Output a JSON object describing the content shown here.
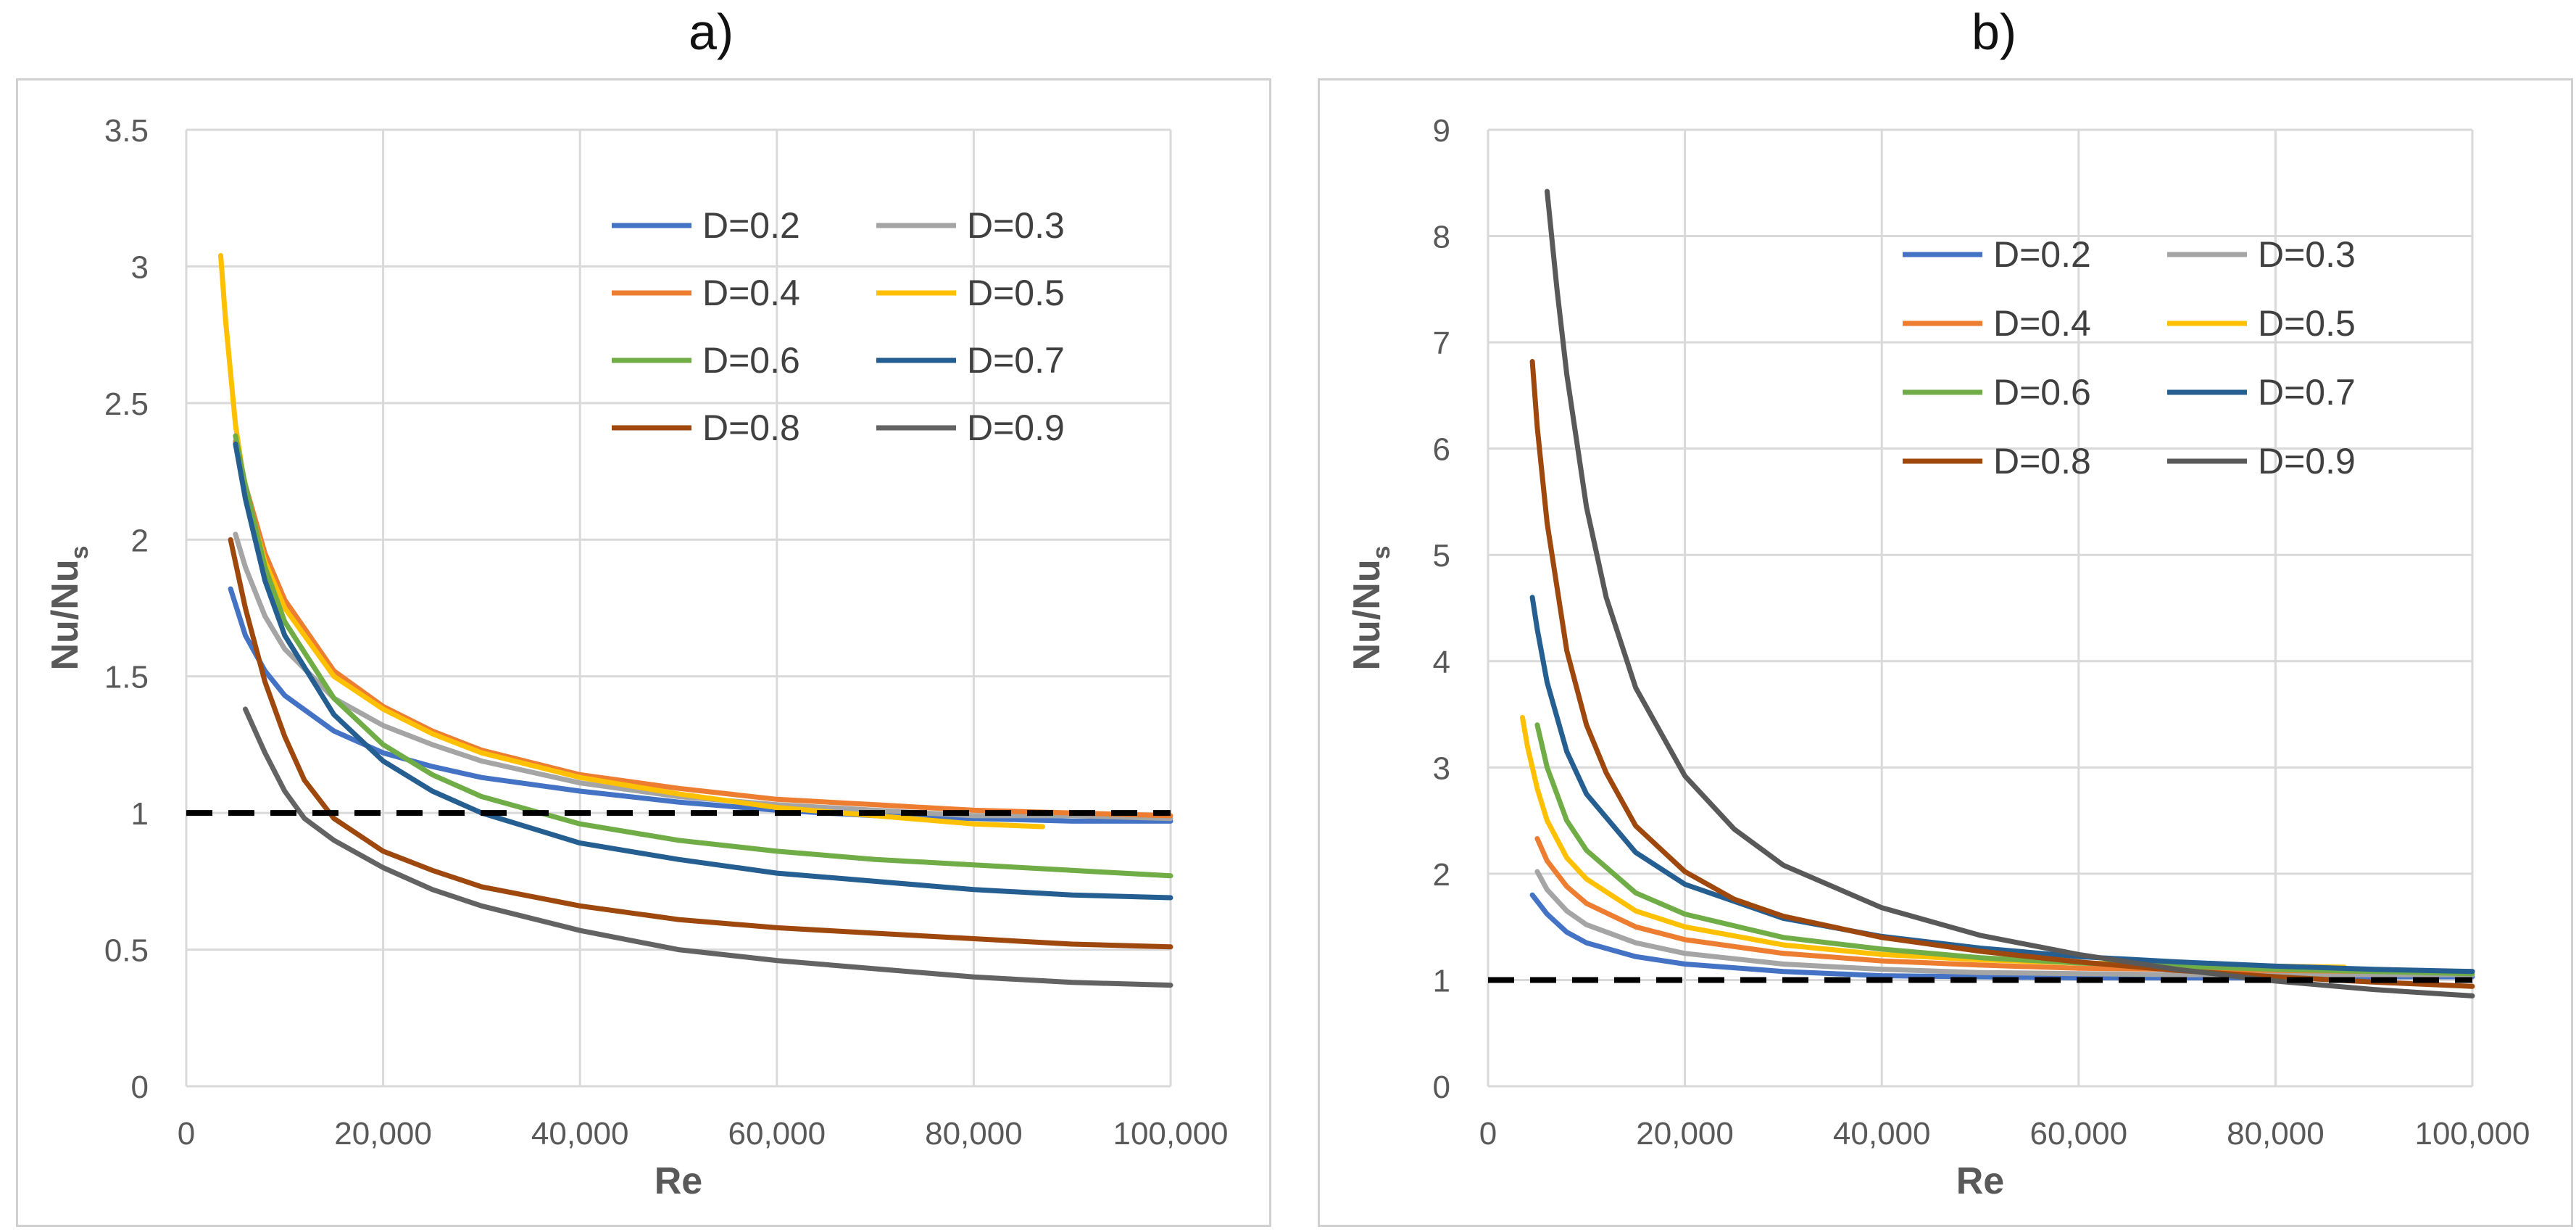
{
  "chart_data": [
    {
      "type": "line",
      "title": "a)",
      "xlabel": "Re",
      "ylabel_main": "Nu/Nu",
      "ylabel_sub": "s",
      "xlim": [
        0,
        100000
      ],
      "ylim": [
        0,
        3.5
      ],
      "xticks": [
        0,
        20000,
        40000,
        60000,
        80000,
        100000
      ],
      "xtick_labels": [
        "0",
        "20,000",
        "40,000",
        "60,000",
        "80,000",
        "100,000"
      ],
      "yticks": [
        0,
        0.5,
        1,
        1.5,
        2,
        2.5,
        3,
        3.5
      ],
      "ytick_labels": [
        "0",
        "0.5",
        "1",
        "1.5",
        "2",
        "2.5",
        "3",
        "3.5"
      ],
      "grid": true,
      "legend_position": "top-right",
      "reference_line": {
        "y": 1,
        "style": "dashed",
        "color": "#000000"
      },
      "series": [
        {
          "name": "D=0.2",
          "color": "#4472C4",
          "x": [
            4500,
            6000,
            8000,
            10000,
            15000,
            20000,
            25000,
            30000,
            40000,
            50000,
            60000,
            70000,
            80000,
            90000,
            100000
          ],
          "y": [
            1.82,
            1.65,
            1.52,
            1.43,
            1.3,
            1.22,
            1.17,
            1.13,
            1.08,
            1.04,
            1.01,
            0.99,
            0.98,
            0.97,
            0.97
          ]
        },
        {
          "name": "D=0.3",
          "color": "#A5A5A5",
          "x": [
            5000,
            6000,
            8000,
            10000,
            15000,
            20000,
            25000,
            30000,
            40000,
            50000,
            60000,
            70000,
            80000,
            90000,
            100000
          ],
          "y": [
            2.02,
            1.9,
            1.72,
            1.6,
            1.42,
            1.32,
            1.25,
            1.19,
            1.11,
            1.06,
            1.03,
            1.01,
            0.99,
            0.99,
            0.98
          ]
        },
        {
          "name": "D=0.4",
          "color": "#ED7D31",
          "x": [
            5000,
            6000,
            8000,
            10000,
            15000,
            20000,
            25000,
            30000,
            40000,
            50000,
            60000,
            70000,
            80000,
            90000,
            100000
          ],
          "y": [
            2.36,
            2.2,
            1.95,
            1.78,
            1.52,
            1.39,
            1.3,
            1.23,
            1.14,
            1.09,
            1.05,
            1.03,
            1.01,
            1.0,
            0.99
          ]
        },
        {
          "name": "D=0.5",
          "color": "#FFC000",
          "x": [
            3500,
            4000,
            5000,
            6000,
            8000,
            10000,
            15000,
            20000,
            25000,
            30000,
            40000,
            50000,
            60000,
            70000,
            80000,
            87000
          ],
          "y": [
            3.04,
            2.8,
            2.42,
            2.18,
            1.92,
            1.75,
            1.5,
            1.38,
            1.29,
            1.22,
            1.13,
            1.07,
            1.02,
            0.99,
            0.96,
            0.95
          ]
        },
        {
          "name": "D=0.6",
          "color": "#70AD47",
          "x": [
            5000,
            6000,
            8000,
            10000,
            15000,
            20000,
            25000,
            30000,
            40000,
            50000,
            60000,
            70000,
            80000,
            90000,
            100000
          ],
          "y": [
            2.38,
            2.2,
            1.9,
            1.7,
            1.42,
            1.25,
            1.14,
            1.06,
            0.96,
            0.9,
            0.86,
            0.83,
            0.81,
            0.79,
            0.77
          ]
        },
        {
          "name": "D=0.7",
          "color": "#255E91",
          "x": [
            5000,
            6000,
            8000,
            10000,
            15000,
            20000,
            25000,
            30000,
            40000,
            50000,
            60000,
            70000,
            80000,
            90000,
            100000
          ],
          "y": [
            2.35,
            2.15,
            1.85,
            1.65,
            1.36,
            1.19,
            1.08,
            1.0,
            0.89,
            0.83,
            0.78,
            0.75,
            0.72,
            0.7,
            0.69
          ]
        },
        {
          "name": "D=0.8",
          "color": "#9E480E",
          "x": [
            4500,
            6000,
            8000,
            10000,
            12000,
            15000,
            20000,
            25000,
            30000,
            40000,
            50000,
            60000,
            70000,
            80000,
            90000,
            100000
          ],
          "y": [
            2.0,
            1.75,
            1.48,
            1.28,
            1.12,
            0.98,
            0.86,
            0.79,
            0.73,
            0.66,
            0.61,
            0.58,
            0.56,
            0.54,
            0.52,
            0.51
          ]
        },
        {
          "name": "D=0.9",
          "color": "#636363",
          "x": [
            6000,
            8000,
            10000,
            12000,
            15000,
            20000,
            25000,
            30000,
            40000,
            50000,
            60000,
            70000,
            80000,
            90000,
            100000
          ],
          "y": [
            1.38,
            1.22,
            1.08,
            0.98,
            0.9,
            0.8,
            0.72,
            0.66,
            0.57,
            0.5,
            0.46,
            0.43,
            0.4,
            0.38,
            0.37
          ]
        }
      ]
    },
    {
      "type": "line",
      "title": "b)",
      "xlabel": "Re",
      "ylabel_main": "Nu/Nu",
      "ylabel_sub": "s",
      "xlim": [
        0,
        100000
      ],
      "ylim": [
        0,
        9
      ],
      "xticks": [
        0,
        20000,
        40000,
        60000,
        80000,
        100000
      ],
      "xtick_labels": [
        "0",
        "20,000",
        "40,000",
        "60,000",
        "80,000",
        "100,000"
      ],
      "yticks": [
        0,
        1,
        2,
        3,
        4,
        5,
        6,
        7,
        8,
        9
      ],
      "ytick_labels": [
        "0",
        "1",
        "2",
        "3",
        "4",
        "5",
        "6",
        "7",
        "8",
        "9"
      ],
      "grid": true,
      "legend_position": "top-right",
      "reference_line": {
        "y": 1,
        "style": "dashed",
        "color": "#000000"
      },
      "series": [
        {
          "name": "D=0.2",
          "color": "#4472C4",
          "x": [
            4500,
            6000,
            8000,
            10000,
            15000,
            20000,
            30000,
            40000,
            50000,
            60000,
            70000,
            80000,
            90000,
            100000
          ],
          "y": [
            1.8,
            1.62,
            1.45,
            1.35,
            1.22,
            1.15,
            1.08,
            1.04,
            1.03,
            1.02,
            1.02,
            1.02,
            1.03,
            1.03
          ]
        },
        {
          "name": "D=0.3",
          "color": "#A5A5A5",
          "x": [
            5000,
            6000,
            8000,
            10000,
            15000,
            20000,
            30000,
            40000,
            50000,
            60000,
            70000,
            80000,
            90000,
            100000
          ],
          "y": [
            2.02,
            1.85,
            1.65,
            1.52,
            1.35,
            1.25,
            1.15,
            1.1,
            1.07,
            1.06,
            1.05,
            1.05,
            1.05,
            1.05
          ]
        },
        {
          "name": "D=0.4",
          "color": "#ED7D31",
          "x": [
            5000,
            6000,
            8000,
            10000,
            15000,
            20000,
            30000,
            40000,
            50000,
            60000,
            70000,
            80000,
            90000,
            100000
          ],
          "y": [
            2.33,
            2.12,
            1.88,
            1.72,
            1.5,
            1.38,
            1.25,
            1.18,
            1.14,
            1.11,
            1.1,
            1.09,
            1.08,
            1.08
          ]
        },
        {
          "name": "D=0.5",
          "color": "#FFC000",
          "x": [
            3500,
            4000,
            5000,
            6000,
            8000,
            10000,
            15000,
            20000,
            30000,
            40000,
            50000,
            60000,
            70000,
            80000,
            87000
          ],
          "y": [
            3.47,
            3.2,
            2.8,
            2.5,
            2.15,
            1.95,
            1.65,
            1.5,
            1.33,
            1.24,
            1.19,
            1.16,
            1.14,
            1.13,
            1.12
          ]
        },
        {
          "name": "D=0.6",
          "color": "#70AD47",
          "x": [
            5000,
            6000,
            8000,
            10000,
            15000,
            20000,
            30000,
            40000,
            50000,
            60000,
            70000,
            80000,
            90000,
            100000
          ],
          "y": [
            3.4,
            3.0,
            2.5,
            2.22,
            1.82,
            1.62,
            1.4,
            1.29,
            1.21,
            1.16,
            1.13,
            1.1,
            1.08,
            1.06
          ]
        },
        {
          "name": "D=0.7",
          "color": "#255E91",
          "x": [
            4500,
            5000,
            6000,
            8000,
            10000,
            15000,
            20000,
            30000,
            40000,
            50000,
            60000,
            70000,
            80000,
            90000,
            100000
          ],
          "y": [
            4.6,
            4.3,
            3.8,
            3.15,
            2.75,
            2.2,
            1.9,
            1.58,
            1.41,
            1.3,
            1.22,
            1.17,
            1.13,
            1.1,
            1.08
          ]
        },
        {
          "name": "D=0.8",
          "color": "#9E480E",
          "x": [
            4500,
            5000,
            6000,
            8000,
            10000,
            12000,
            15000,
            20000,
            25000,
            30000,
            40000,
            50000,
            60000,
            70000,
            80000,
            90000,
            100000
          ],
          "y": [
            6.82,
            6.2,
            5.3,
            4.1,
            3.4,
            2.95,
            2.45,
            2.02,
            1.76,
            1.6,
            1.4,
            1.27,
            1.17,
            1.09,
            1.03,
            0.98,
            0.94
          ]
        },
        {
          "name": "D=0.9",
          "color": "#595959",
          "x": [
            6000,
            7000,
            8000,
            10000,
            12000,
            15000,
            20000,
            25000,
            30000,
            40000,
            50000,
            60000,
            70000,
            80000,
            90000,
            100000
          ],
          "y": [
            8.42,
            7.5,
            6.7,
            5.45,
            4.6,
            3.75,
            2.92,
            2.42,
            2.08,
            1.68,
            1.42,
            1.24,
            1.1,
            0.99,
            0.91,
            0.85
          ]
        }
      ]
    }
  ]
}
